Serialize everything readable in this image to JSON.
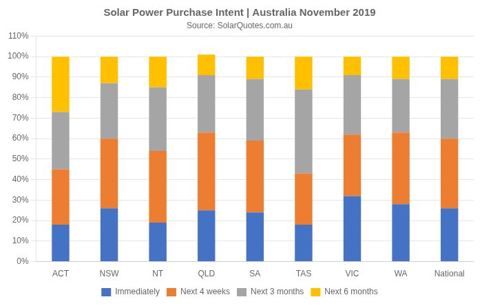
{
  "chart_data": {
    "type": "bar",
    "title": "Solar Power Purchase Intent | Australia November 2019",
    "subtitle": "Source: SolarQuotes.com.au",
    "categories": [
      "ACT",
      "NSW",
      "NT",
      "QLD",
      "SA",
      "TAS",
      "VIC",
      "WA",
      "National"
    ],
    "series": [
      {
        "name": "Immediately",
        "color": "#4472C4",
        "values": [
          18,
          26,
          19,
          25,
          24,
          18,
          32,
          28,
          26
        ]
      },
      {
        "name": "Next 4 weeks",
        "color": "#ED7D31",
        "values": [
          27,
          34,
          35,
          38,
          35,
          25,
          30,
          35,
          34
        ]
      },
      {
        "name": "Next 3 months",
        "color": "#A5A5A5",
        "values": [
          28,
          27,
          31,
          28,
          30,
          41,
          29,
          26,
          29
        ]
      },
      {
        "name": "Next 6 months",
        "color": "#FFC000",
        "values": [
          27,
          13,
          15,
          10,
          11,
          16,
          9,
          11,
          11
        ]
      }
    ],
    "stacked": true,
    "ylim": [
      0,
      110
    ],
    "yticks": [
      {
        "value": 0,
        "label": "0%"
      },
      {
        "value": 10,
        "label": "10%"
      },
      {
        "value": 20,
        "label": "20%"
      },
      {
        "value": 30,
        "label": "30%"
      },
      {
        "value": 40,
        "label": "40%"
      },
      {
        "value": 50,
        "label": "50%"
      },
      {
        "value": 60,
        "label": "60%"
      },
      {
        "value": 70,
        "label": "70%"
      },
      {
        "value": 80,
        "label": "80%"
      },
      {
        "value": 90,
        "label": "90%"
      },
      {
        "value": 100,
        "label": "100%"
      },
      {
        "value": 110,
        "label": "110%"
      }
    ],
    "grid": true,
    "legend": "bottom"
  }
}
